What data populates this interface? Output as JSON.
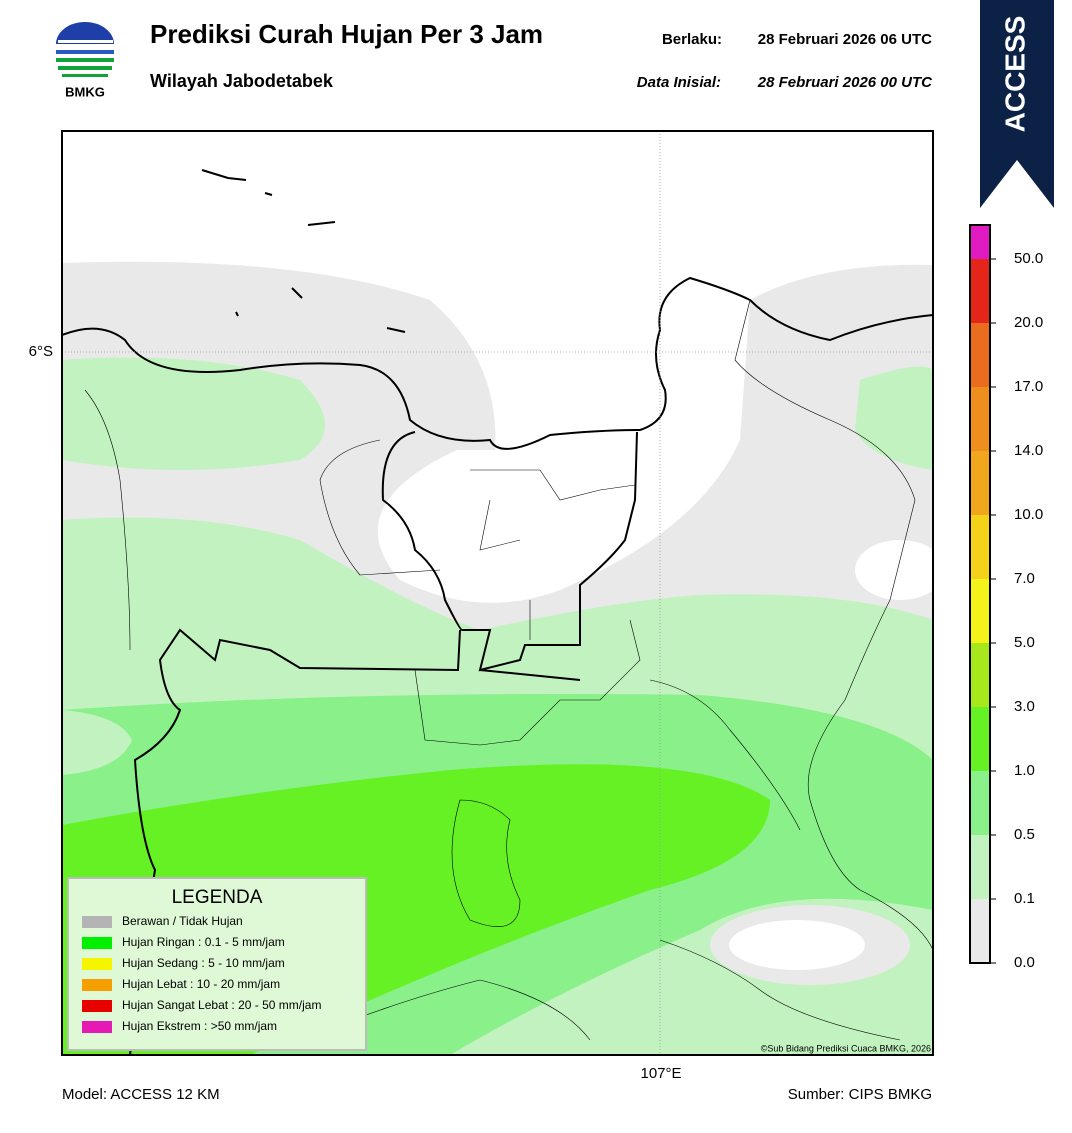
{
  "header": {
    "logo_text": "BMKG",
    "title": "Prediksi Curah Hujan Per 3 Jam",
    "subtitle": "Wilayah Jabodetabek",
    "valid_label": "Berlaku:",
    "valid_time": "28 Februari 2026 06 UTC",
    "init_label": "Data Inisial:",
    "init_time": "28 Februari 2026 00 UTC"
  },
  "banner": "ACCESS",
  "map": {
    "lat_label": "6°S",
    "lon_label": "107°E",
    "copyright": "©Sub Bidang Prediksi Cuaca BMKG, 2026"
  },
  "legend": {
    "title": "LEGENDA",
    "items": [
      {
        "label": "Berawan / Tidak Hujan",
        "color": "#b4b4b4"
      },
      {
        "label": "Hujan Ringan : 0.1 - 5 mm/jam",
        "color": "#00f000"
      },
      {
        "label": "Hujan Sedang : 5 - 10 mm/jam",
        "color": "#f5f500"
      },
      {
        "label": "Hujan Lebat : 10 - 20 mm/jam",
        "color": "#f5a000"
      },
      {
        "label": "Hujan Sangat Lebat : 20 - 50 mm/jam",
        "color": "#e60000"
      },
      {
        "label": "Hujan Ekstrem : >50 mm/jam",
        "color": "#e619b4"
      }
    ]
  },
  "colorbar": {
    "ticks": [
      "0.0",
      "0.1",
      "0.5",
      "1.0",
      "3.0",
      "5.0",
      "7.0",
      "10.0",
      "14.0",
      "17.0",
      "20.0",
      "50.0"
    ],
    "colors": [
      "#e9e9e9",
      "#c2f2bf",
      "#8af089",
      "#66f124",
      "#a7e81d",
      "#f3f21b",
      "#f4d21a",
      "#f1a71d",
      "#ee8e1f",
      "#ea6c1e",
      "#e32619",
      "#df1bc1"
    ]
  },
  "footer": {
    "model": "Model: ACCESS 12 KM",
    "source": "Sumber: CIPS BMKG"
  }
}
